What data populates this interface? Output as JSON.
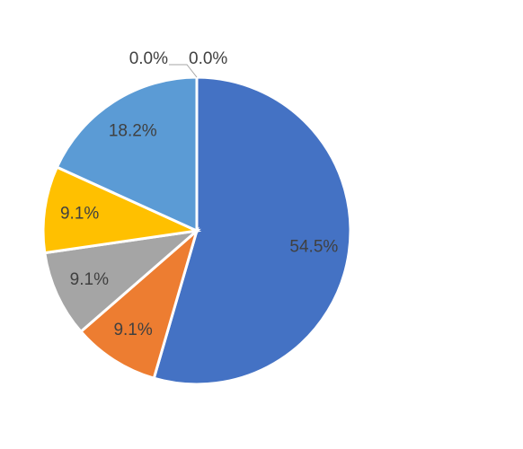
{
  "chart_data": {
    "type": "pie",
    "title": "",
    "legend": "none",
    "slices": [
      {
        "label": "54.5%",
        "value": 54.5,
        "color": "#4472C4"
      },
      {
        "label": "9.1%",
        "value": 9.1,
        "color": "#ED7D31"
      },
      {
        "label": "9.1%",
        "value": 9.1,
        "color": "#A5A5A5"
      },
      {
        "label": "9.1%",
        "value": 9.1,
        "color": "#FFC000"
      },
      {
        "label": "18.2%",
        "value": 18.2,
        "color": "#5B9BD5"
      },
      {
        "label": "0.0%",
        "value": 0.0,
        "color": "#70AD47"
      },
      {
        "label": "0.0%",
        "value": 0.0,
        "color": "#264478"
      }
    ]
  }
}
